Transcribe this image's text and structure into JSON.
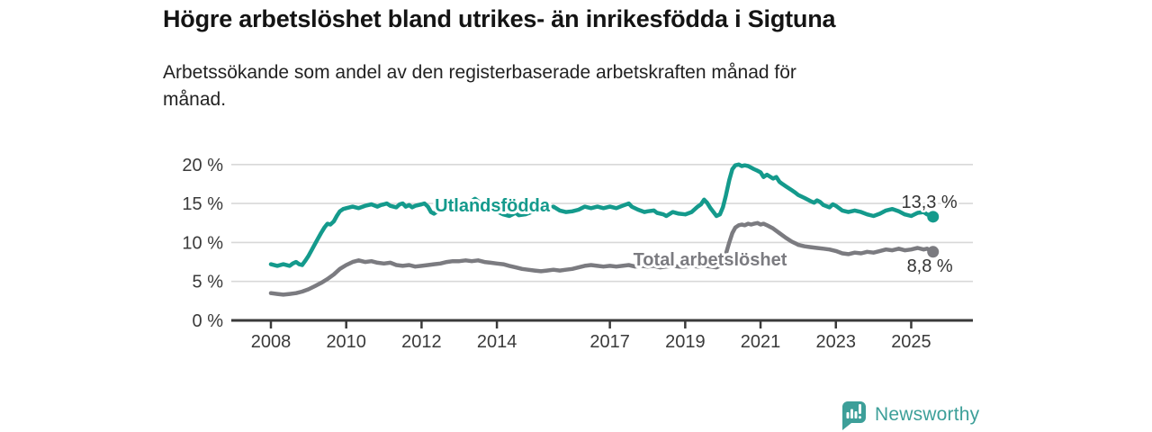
{
  "header": {
    "title": "Högre arbetslöshet bland utrikes- än inrikesfödda i Sigtuna",
    "subtitle_lines": [
      "Arbetssökande som andel av den registerbaserade arbetskraften månad för",
      "månad."
    ]
  },
  "chart_data": {
    "type": "line",
    "title": "Högre arbetslöshet bland utrikes- än inrikesfödda i Sigtuna",
    "subtitle": "Arbetssökande som andel av den registerbaserade arbetskraften månad för månad.",
    "grid": true,
    "legend_position": "inline-labels",
    "x_axis": {
      "unit": "year",
      "tick_labels": [
        "2008",
        "2010",
        "2012",
        "2014",
        "2017",
        "2019",
        "2021",
        "2023",
        "2025"
      ],
      "tick_years": [
        2008,
        2010,
        2012,
        2014,
        2017,
        2019,
        2021,
        2023,
        2025
      ],
      "range_years": [
        2006.95,
        2026.6
      ]
    },
    "y_axis": {
      "unit": "percent",
      "tick_labels": [
        "0 %",
        "5 %",
        "10 %",
        "15 %",
        "20 %"
      ],
      "tick_values": [
        0,
        5,
        10,
        15,
        20
      ],
      "range": [
        0,
        21
      ]
    },
    "series": [
      {
        "name": "Utlandsfödda",
        "color": "#149a8c",
        "end_label": "13,3 %",
        "end_value": 13.3,
        "label_anchor_year": 2013.88,
        "label_anchor_value": 14.78,
        "points": [
          [
            2008.0,
            7.2
          ],
          [
            2008.17,
            7.0
          ],
          [
            2008.33,
            7.2
          ],
          [
            2008.5,
            7.0
          ],
          [
            2008.58,
            7.3
          ],
          [
            2008.67,
            7.5
          ],
          [
            2008.75,
            7.2
          ],
          [
            2008.83,
            7.1
          ],
          [
            2008.92,
            7.7
          ],
          [
            2009.0,
            8.3
          ],
          [
            2009.08,
            9.0
          ],
          [
            2009.17,
            9.8
          ],
          [
            2009.25,
            10.5
          ],
          [
            2009.33,
            11.2
          ],
          [
            2009.42,
            11.9
          ],
          [
            2009.5,
            12.4
          ],
          [
            2009.58,
            12.3
          ],
          [
            2009.67,
            12.7
          ],
          [
            2009.75,
            13.4
          ],
          [
            2009.83,
            14.0
          ],
          [
            2009.92,
            14.3
          ],
          [
            2010.0,
            14.4
          ],
          [
            2010.17,
            14.6
          ],
          [
            2010.33,
            14.4
          ],
          [
            2010.5,
            14.7
          ],
          [
            2010.67,
            14.9
          ],
          [
            2010.83,
            14.6
          ],
          [
            2010.92,
            14.8
          ],
          [
            2011.0,
            14.9
          ],
          [
            2011.08,
            15.0
          ],
          [
            2011.17,
            14.7
          ],
          [
            2011.33,
            14.5
          ],
          [
            2011.42,
            14.9
          ],
          [
            2011.5,
            15.0
          ],
          [
            2011.58,
            14.6
          ],
          [
            2011.67,
            14.8
          ],
          [
            2011.75,
            14.5
          ],
          [
            2011.83,
            14.7
          ],
          [
            2012.0,
            14.9
          ],
          [
            2012.08,
            15.0
          ],
          [
            2012.17,
            14.6
          ],
          [
            2012.25,
            13.9
          ],
          [
            2012.33,
            13.7
          ],
          [
            2012.42,
            14.0
          ],
          [
            2012.5,
            14.4
          ],
          [
            2012.58,
            14.2
          ],
          [
            2012.67,
            14.5
          ],
          [
            2012.83,
            14.3
          ],
          [
            2012.92,
            14.6
          ],
          [
            2013.0,
            14.8
          ],
          [
            2013.17,
            15.0
          ],
          [
            2013.33,
            15.3
          ],
          [
            2013.42,
            15.6
          ],
          [
            2013.5,
            15.3
          ],
          [
            2013.58,
            15.0
          ],
          [
            2013.75,
            14.6
          ],
          [
            2013.92,
            14.2
          ],
          [
            2014.0,
            14.0
          ],
          [
            2014.17,
            13.6
          ],
          [
            2014.33,
            13.4
          ],
          [
            2014.5,
            13.8
          ],
          [
            2014.58,
            13.5
          ],
          [
            2014.75,
            13.6
          ],
          [
            2014.92,
            13.9
          ],
          [
            2015.0,
            14.2
          ],
          [
            2015.17,
            14.6
          ],
          [
            2015.33,
            14.3
          ],
          [
            2015.5,
            14.6
          ],
          [
            2015.67,
            14.1
          ],
          [
            2015.83,
            13.9
          ],
          [
            2016.0,
            14.0
          ],
          [
            2016.17,
            14.2
          ],
          [
            2016.33,
            14.6
          ],
          [
            2016.5,
            14.4
          ],
          [
            2016.67,
            14.6
          ],
          [
            2016.83,
            14.4
          ],
          [
            2017.0,
            14.6
          ],
          [
            2017.17,
            14.4
          ],
          [
            2017.33,
            14.7
          ],
          [
            2017.5,
            15.0
          ],
          [
            2017.58,
            14.6
          ],
          [
            2017.75,
            14.2
          ],
          [
            2017.92,
            13.9
          ],
          [
            2018.0,
            14.0
          ],
          [
            2018.17,
            14.1
          ],
          [
            2018.25,
            13.8
          ],
          [
            2018.42,
            13.6
          ],
          [
            2018.5,
            13.4
          ],
          [
            2018.67,
            13.9
          ],
          [
            2018.83,
            13.7
          ],
          [
            2019.0,
            13.6
          ],
          [
            2019.17,
            13.9
          ],
          [
            2019.33,
            14.6
          ],
          [
            2019.42,
            14.9
          ],
          [
            2019.5,
            15.5
          ],
          [
            2019.58,
            15.1
          ],
          [
            2019.67,
            14.4
          ],
          [
            2019.83,
            13.4
          ],
          [
            2019.92,
            13.6
          ],
          [
            2020.0,
            14.5
          ],
          [
            2020.08,
            16.0
          ],
          [
            2020.17,
            18.0
          ],
          [
            2020.25,
            19.4
          ],
          [
            2020.33,
            19.9
          ],
          [
            2020.42,
            20.0
          ],
          [
            2020.5,
            19.8
          ],
          [
            2020.58,
            19.9
          ],
          [
            2020.67,
            19.8
          ],
          [
            2020.75,
            19.6
          ],
          [
            2020.83,
            19.4
          ],
          [
            2020.92,
            19.2
          ],
          [
            2021.0,
            19.0
          ],
          [
            2021.08,
            18.4
          ],
          [
            2021.17,
            18.7
          ],
          [
            2021.33,
            18.2
          ],
          [
            2021.42,
            18.4
          ],
          [
            2021.5,
            17.8
          ],
          [
            2021.58,
            17.5
          ],
          [
            2021.67,
            17.2
          ],
          [
            2021.83,
            16.7
          ],
          [
            2021.92,
            16.4
          ],
          [
            2022.0,
            16.1
          ],
          [
            2022.17,
            15.7
          ],
          [
            2022.33,
            15.3
          ],
          [
            2022.42,
            15.1
          ],
          [
            2022.5,
            15.4
          ],
          [
            2022.58,
            15.2
          ],
          [
            2022.67,
            14.8
          ],
          [
            2022.83,
            14.5
          ],
          [
            2022.92,
            14.9
          ],
          [
            2023.0,
            14.7
          ],
          [
            2023.17,
            14.1
          ],
          [
            2023.33,
            13.9
          ],
          [
            2023.5,
            14.1
          ],
          [
            2023.67,
            13.9
          ],
          [
            2023.83,
            13.6
          ],
          [
            2024.0,
            13.4
          ],
          [
            2024.17,
            13.7
          ],
          [
            2024.33,
            14.1
          ],
          [
            2024.5,
            14.3
          ],
          [
            2024.67,
            14.0
          ],
          [
            2024.83,
            13.6
          ],
          [
            2025.0,
            13.4
          ],
          [
            2025.17,
            13.8
          ],
          [
            2025.33,
            13.9
          ],
          [
            2025.42,
            13.6
          ],
          [
            2025.5,
            13.5
          ],
          [
            2025.58,
            13.3
          ]
        ]
      },
      {
        "name": "Total arbetslöshet",
        "color": "#7b7b80",
        "end_label": "8,8 %",
        "end_value": 8.8,
        "label_anchor_year": 2019.66,
        "label_anchor_value": 7.85,
        "points": [
          [
            2008.0,
            3.5
          ],
          [
            2008.17,
            3.4
          ],
          [
            2008.33,
            3.3
          ],
          [
            2008.5,
            3.4
          ],
          [
            2008.67,
            3.5
          ],
          [
            2008.83,
            3.7
          ],
          [
            2009.0,
            4.0
          ],
          [
            2009.17,
            4.4
          ],
          [
            2009.33,
            4.8
          ],
          [
            2009.5,
            5.3
          ],
          [
            2009.67,
            5.9
          ],
          [
            2009.83,
            6.6
          ],
          [
            2010.0,
            7.1
          ],
          [
            2010.17,
            7.5
          ],
          [
            2010.33,
            7.7
          ],
          [
            2010.5,
            7.5
          ],
          [
            2010.67,
            7.6
          ],
          [
            2010.83,
            7.4
          ],
          [
            2011.0,
            7.3
          ],
          [
            2011.17,
            7.4
          ],
          [
            2011.33,
            7.1
          ],
          [
            2011.5,
            7.0
          ],
          [
            2011.67,
            7.1
          ],
          [
            2011.83,
            6.9
          ],
          [
            2012.0,
            7.0
          ],
          [
            2012.17,
            7.1
          ],
          [
            2012.33,
            7.2
          ],
          [
            2012.5,
            7.3
          ],
          [
            2012.67,
            7.5
          ],
          [
            2012.83,
            7.6
          ],
          [
            2013.0,
            7.6
          ],
          [
            2013.17,
            7.7
          ],
          [
            2013.33,
            7.6
          ],
          [
            2013.5,
            7.7
          ],
          [
            2013.67,
            7.5
          ],
          [
            2013.83,
            7.4
          ],
          [
            2014.0,
            7.3
          ],
          [
            2014.17,
            7.2
          ],
          [
            2014.33,
            7.0
          ],
          [
            2014.5,
            6.8
          ],
          [
            2014.67,
            6.6
          ],
          [
            2014.83,
            6.5
          ],
          [
            2015.0,
            6.4
          ],
          [
            2015.17,
            6.3
          ],
          [
            2015.33,
            6.4
          ],
          [
            2015.5,
            6.5
          ],
          [
            2015.67,
            6.4
          ],
          [
            2015.83,
            6.5
          ],
          [
            2016.0,
            6.6
          ],
          [
            2016.17,
            6.8
          ],
          [
            2016.33,
            7.0
          ],
          [
            2016.5,
            7.1
          ],
          [
            2016.67,
            7.0
          ],
          [
            2016.83,
            6.9
          ],
          [
            2017.0,
            7.0
          ],
          [
            2017.17,
            6.9
          ],
          [
            2017.33,
            7.0
          ],
          [
            2017.5,
            7.1
          ],
          [
            2017.67,
            6.9
          ],
          [
            2017.83,
            7.0
          ],
          [
            2018.0,
            6.9
          ],
          [
            2018.17,
            7.0
          ],
          [
            2018.33,
            6.8
          ],
          [
            2018.5,
            6.9
          ],
          [
            2018.67,
            7.0
          ],
          [
            2018.83,
            6.9
          ],
          [
            2019.0,
            6.9
          ],
          [
            2019.17,
            7.0
          ],
          [
            2019.33,
            6.9
          ],
          [
            2019.5,
            7.0
          ],
          [
            2019.67,
            6.9
          ],
          [
            2019.83,
            6.8
          ],
          [
            2019.92,
            7.0
          ],
          [
            2020.0,
            7.5
          ],
          [
            2020.08,
            8.5
          ],
          [
            2020.17,
            10.0
          ],
          [
            2020.25,
            11.2
          ],
          [
            2020.33,
            11.9
          ],
          [
            2020.42,
            12.2
          ],
          [
            2020.5,
            12.3
          ],
          [
            2020.58,
            12.2
          ],
          [
            2020.67,
            12.4
          ],
          [
            2020.75,
            12.3
          ],
          [
            2020.83,
            12.4
          ],
          [
            2020.92,
            12.5
          ],
          [
            2021.0,
            12.3
          ],
          [
            2021.08,
            12.4
          ],
          [
            2021.17,
            12.2
          ],
          [
            2021.33,
            11.8
          ],
          [
            2021.5,
            11.2
          ],
          [
            2021.67,
            10.6
          ],
          [
            2021.83,
            10.1
          ],
          [
            2021.92,
            9.9
          ],
          [
            2022.0,
            9.7
          ],
          [
            2022.17,
            9.5
          ],
          [
            2022.33,
            9.4
          ],
          [
            2022.5,
            9.3
          ],
          [
            2022.67,
            9.2
          ],
          [
            2022.83,
            9.1
          ],
          [
            2023.0,
            8.9
          ],
          [
            2023.17,
            8.6
          ],
          [
            2023.33,
            8.5
          ],
          [
            2023.5,
            8.7
          ],
          [
            2023.67,
            8.6
          ],
          [
            2023.83,
            8.8
          ],
          [
            2024.0,
            8.7
          ],
          [
            2024.17,
            8.9
          ],
          [
            2024.33,
            9.1
          ],
          [
            2024.5,
            9.0
          ],
          [
            2024.67,
            9.2
          ],
          [
            2024.83,
            9.0
          ],
          [
            2025.0,
            9.1
          ],
          [
            2025.17,
            9.3
          ],
          [
            2025.33,
            9.1
          ],
          [
            2025.42,
            9.2
          ],
          [
            2025.5,
            9.0
          ],
          [
            2025.58,
            8.8
          ]
        ]
      }
    ]
  },
  "footer": {
    "brand": "Newsworthy",
    "brand_color": "#3d9f99",
    "logo_icon": "bar-chart-speech-bubble-icon"
  }
}
